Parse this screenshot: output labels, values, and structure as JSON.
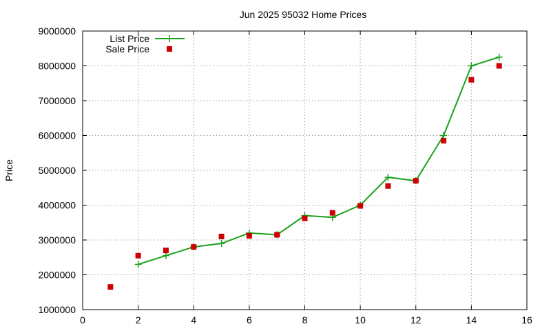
{
  "chart_data": {
    "type": "line",
    "title": "Jun 2025 95032 Home Prices",
    "xlabel": "",
    "ylabel": "Price",
    "xlim": [
      0,
      16
    ],
    "ylim": [
      1000000,
      9000000
    ],
    "x_ticks": [
      "0",
      "2",
      "4",
      "6",
      "8",
      "10",
      "12",
      "14",
      "16"
    ],
    "y_ticks": [
      "1000000",
      "2000000",
      "3000000",
      "4000000",
      "5000000",
      "6000000",
      "7000000",
      "8000000",
      "9000000"
    ],
    "grid": true,
    "legend_position": "top-left",
    "x": [
      1,
      2,
      3,
      4,
      5,
      6,
      7,
      8,
      9,
      10,
      11,
      12,
      13,
      14,
      15
    ],
    "series": [
      {
        "name": "List Price",
        "style": "line-plus",
        "color": "#1aa01a",
        "values": [
          null,
          2300000,
          2550000,
          2800000,
          2900000,
          3200000,
          3150000,
          3700000,
          3650000,
          4000000,
          4800000,
          4700000,
          6000000,
          8000000,
          8250000
        ]
      },
      {
        "name": "Sale Price",
        "style": "square-points",
        "color": "#cc0000",
        "values": [
          1650000,
          2550000,
          2700000,
          2800000,
          3100000,
          3120000,
          3150000,
          3620000,
          3780000,
          3980000,
          4550000,
          4700000,
          5850000,
          7600000,
          8000000
        ]
      }
    ]
  }
}
